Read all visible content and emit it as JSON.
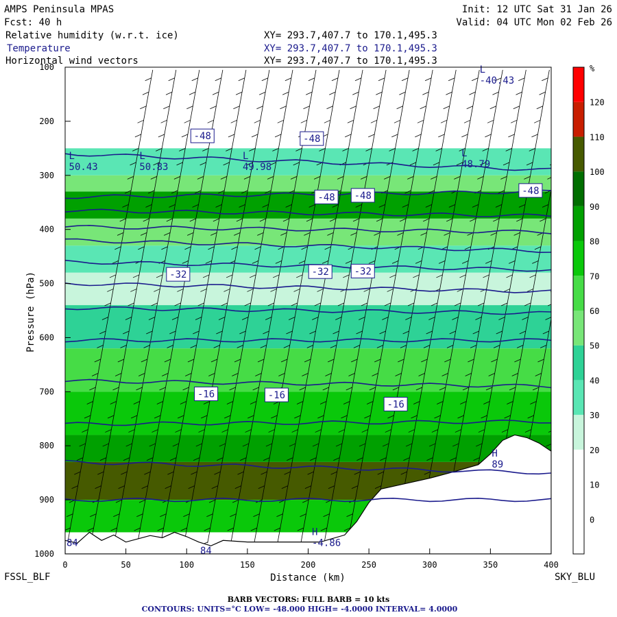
{
  "header": {
    "model": "AMPS Peninsula MPAS",
    "fcst": "Fcst:    40 h",
    "init": "Init: 12 UTC Sat 31 Jan 26",
    "valid": "Valid: 04 UTC Mon 02 Feb 26",
    "fields": [
      {
        "name": "Relative humidity (w.r.t. ice)",
        "xy": "XY= 293.7,407.7 to 170.1,495.3"
      },
      {
        "name": "Temperature",
        "xy": "XY= 293.7,407.7 to 170.1,495.3"
      },
      {
        "name": "Horizontal wind vectors",
        "xy": "XY= 293.7,407.7 to 170.1,495.3"
      }
    ]
  },
  "corners": {
    "left": "FSSL_BLF",
    "right": "SKY_BLU"
  },
  "footer": {
    "barbs": "BARB VECTORS:  FULL BARB = 10 kts",
    "contours": "CONTOURS:  UNITS=°C  LOW= -48.000     HIGH= -4.0000     INTERVAL=   4.0000"
  },
  "colors": {
    "contour": "#1a1a8c",
    "terrain": "#ffffff",
    "barb": "#000000"
  },
  "chart_data": {
    "type": "heatmap",
    "xlabel": "Distance (km)",
    "ylabel": "Pressure (hPa)",
    "xlim": [
      0,
      400
    ],
    "ylim": [
      1000,
      100
    ],
    "x_ticks": [
      0,
      50,
      100,
      150,
      200,
      250,
      300,
      350,
      400
    ],
    "y_ticks": [
      100,
      200,
      300,
      400,
      500,
      600,
      700,
      800,
      900,
      1000
    ],
    "colorbar": {
      "unit": "%",
      "levels": [
        0,
        10,
        20,
        30,
        40,
        50,
        60,
        70,
        80,
        90,
        100,
        110,
        120
      ],
      "colors": [
        "#ffffff",
        "#ffffff",
        "#ffffff",
        "#c8f5dc",
        "#5ae6b4",
        "#2ed296",
        "#78e678",
        "#46dc46",
        "#0ac80a",
        "#00a000",
        "#006e00",
        "#465a00",
        "#c81e00",
        "#ff0000"
      ]
    },
    "rh_bands": [
      {
        "from": 250,
        "to": 300,
        "rh": 35
      },
      {
        "from": 300,
        "to": 330,
        "rh": 55
      },
      {
        "from": 330,
        "to": 380,
        "rh": 80
      },
      {
        "from": 380,
        "to": 430,
        "rh": 50
      },
      {
        "from": 430,
        "to": 480,
        "rh": 30
      },
      {
        "from": 480,
        "to": 540,
        "rh": 25
      },
      {
        "from": 540,
        "to": 620,
        "rh": 40
      },
      {
        "from": 620,
        "to": 700,
        "rh": 60
      },
      {
        "from": 700,
        "to": 780,
        "rh": 70
      },
      {
        "from": 780,
        "to": 830,
        "rh": 80
      },
      {
        "from": 830,
        "to": 900,
        "rh": 105
      },
      {
        "from": 900,
        "to": 960,
        "rh": 75
      }
    ],
    "terrain_surface": {
      "x": [
        0,
        10,
        20,
        30,
        40,
        50,
        60,
        70,
        80,
        90,
        100,
        110,
        120,
        130,
        150,
        170,
        190,
        210,
        230,
        240,
        250,
        260,
        280,
        300,
        320,
        340,
        350,
        360,
        370,
        380,
        390,
        400
      ],
      "p": [
        975,
        980,
        960,
        975,
        965,
        978,
        972,
        966,
        970,
        960,
        968,
        978,
        985,
        975,
        978,
        978,
        978,
        978,
        965,
        940,
        905,
        880,
        870,
        860,
        848,
        835,
        815,
        790,
        780,
        785,
        795,
        810
      ]
    },
    "isotherms": [
      {
        "value": -48,
        "p_left": 260,
        "p_right": 290
      },
      {
        "value": -48,
        "p_left": 340,
        "p_right": 330
      },
      {
        "value": -44,
        "p_left": 365,
        "p_right": 375
      },
      {
        "value": -40,
        "p_left": 395,
        "p_right": 405
      },
      {
        "value": -36,
        "p_left": 420,
        "p_right": 440
      },
      {
        "value": -32,
        "p_left": 460,
        "p_right": 475
      },
      {
        "value": -28,
        "p_left": 500,
        "p_right": 515
      },
      {
        "value": -24,
        "p_left": 545,
        "p_right": 555
      },
      {
        "value": -20,
        "p_left": 605,
        "p_right": 605
      },
      {
        "value": -16,
        "p_left": 680,
        "p_right": 690
      },
      {
        "value": -12,
        "p_left": 760,
        "p_right": 755
      },
      {
        "value": -8,
        "p_left": 830,
        "p_right": 850
      },
      {
        "value": -4,
        "p_left": 900,
        "p_right": 900
      }
    ],
    "contour_labels": [
      {
        "text": "-48",
        "x": 113,
        "p": 227
      },
      {
        "text": "-48",
        "x": 203,
        "p": 232
      },
      {
        "text": "-48",
        "x": 215,
        "p": 340
      },
      {
        "text": "-48",
        "x": 245,
        "p": 337
      },
      {
        "text": "-48",
        "x": 383,
        "p": 328
      },
      {
        "text": "-32",
        "x": 93,
        "p": 483
      },
      {
        "text": "-32",
        "x": 210,
        "p": 478
      },
      {
        "text": "-32",
        "x": 245,
        "p": 477
      },
      {
        "text": "-16",
        "x": 116,
        "p": 704
      },
      {
        "text": "-16",
        "x": 174,
        "p": 706
      },
      {
        "text": "-16",
        "x": 272,
        "p": 723
      }
    ],
    "extrema": [
      {
        "kind": "L",
        "x": 2,
        "p": 280,
        "value": "50.43"
      },
      {
        "kind": "L",
        "x": 60,
        "p": 280,
        "value": "50.83"
      },
      {
        "kind": "L",
        "x": 145,
        "p": 280,
        "value": "49.98"
      },
      {
        "kind": "L",
        "x": 325,
        "p": 275,
        "value": "48.79"
      },
      {
        "kind": "L",
        "x": 340,
        "p": 120,
        "value": "-40.43"
      },
      {
        "kind": "H",
        "x": 202,
        "p": 975,
        "value": "-4.86"
      },
      {
        "kind": "H",
        "x": 350,
        "p": 830,
        "value": "89"
      },
      {
        "kind": "",
        "x": 110,
        "p": 990,
        "value": "84"
      },
      {
        "kind": "",
        "x": 0,
        "p": 975,
        "value": "84"
      }
    ]
  }
}
